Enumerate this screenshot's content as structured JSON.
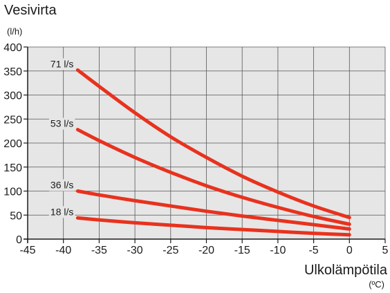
{
  "chart_data": {
    "type": "line",
    "ylabel": "Vesivirta",
    "yunit": "(l/h)",
    "xlabel": "Ulkolämpötila",
    "xunit": "(ºC)",
    "xlim": [
      -45,
      5
    ],
    "ylim": [
      0,
      400
    ],
    "xticks": [
      -45,
      -40,
      -35,
      -30,
      -25,
      -20,
      -15,
      -10,
      -5,
      0,
      5
    ],
    "yticks": [
      0,
      50,
      100,
      150,
      200,
      250,
      300,
      350,
      400
    ],
    "grid": true,
    "colors": {
      "line": "#e8321e",
      "plot_bg": "#e6e6e6",
      "grid": "#555555",
      "axis": "#1a1a1a"
    },
    "series": [
      {
        "name": "71 l/s",
        "x": [
          -38,
          -35,
          -30,
          -25,
          -20,
          -15,
          -10,
          -5,
          0
        ],
        "y": [
          352,
          318,
          263,
          213,
          170,
          131,
          98,
          69,
          45
        ]
      },
      {
        "name": "53 l/s",
        "x": [
          -38,
          -35,
          -30,
          -25,
          -20,
          -15,
          -10,
          -5,
          0
        ],
        "y": [
          228,
          205,
          170,
          139,
          111,
          87,
          66,
          47,
          31
        ]
      },
      {
        "name": "36 l/s",
        "x": [
          -38,
          -35,
          -30,
          -25,
          -20,
          -15,
          -10,
          -5,
          0
        ],
        "y": [
          100,
          92,
          80,
          69,
          58,
          48,
          39,
          30,
          21
        ]
      },
      {
        "name": "18 l/s",
        "x": [
          -38,
          -35,
          -30,
          -25,
          -20,
          -15,
          -10,
          -5,
          0
        ],
        "y": [
          44,
          40,
          34,
          29,
          24,
          20,
          16,
          12,
          9
        ]
      }
    ]
  }
}
